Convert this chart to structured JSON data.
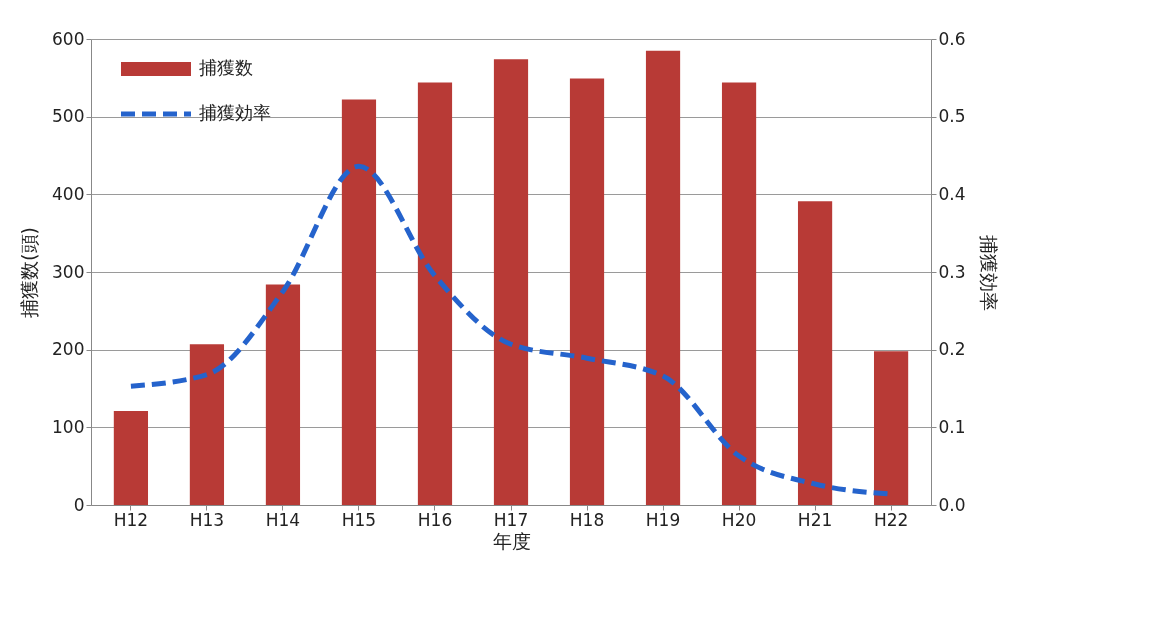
{
  "chart_data": {
    "type": "bar",
    "xlabel": "年度",
    "ylabel": "捕獲数(頭)",
    "y2label": "捕獲効率",
    "categories": [
      "H12",
      "H13",
      "H14",
      "H15",
      "H16",
      "H17",
      "H18",
      "H19",
      "H20",
      "H21",
      "H22"
    ],
    "series": [
      {
        "name": "捕獲数",
        "color": "#b83a36",
        "values": [
          121,
          207,
          284,
          522,
          544,
          574,
          549,
          585,
          544,
          391,
          198
        ]
      },
      {
        "name": "捕獲効率",
        "type": "line",
        "axis": "y2",
        "color": "#2563cc",
        "line_style": "dashed",
        "values": [
          0.153,
          0.168,
          0.275,
          0.436,
          0.295,
          0.207,
          0.189,
          0.166,
          0.063,
          0.027,
          0.014
        ]
      }
    ],
    "ylim": [
      0,
      600
    ],
    "yticks": [
      0,
      100,
      200,
      300,
      400,
      500,
      600
    ],
    "y2lim": [
      0,
      0.6
    ],
    "y2ticks": [
      {
        "value": 0,
        "label": "0.0"
      },
      0.1,
      0.2,
      0.3,
      0.4,
      0.5,
      0.6
    ],
    "grid": "y",
    "legend": "top left",
    "marker": "none"
  }
}
